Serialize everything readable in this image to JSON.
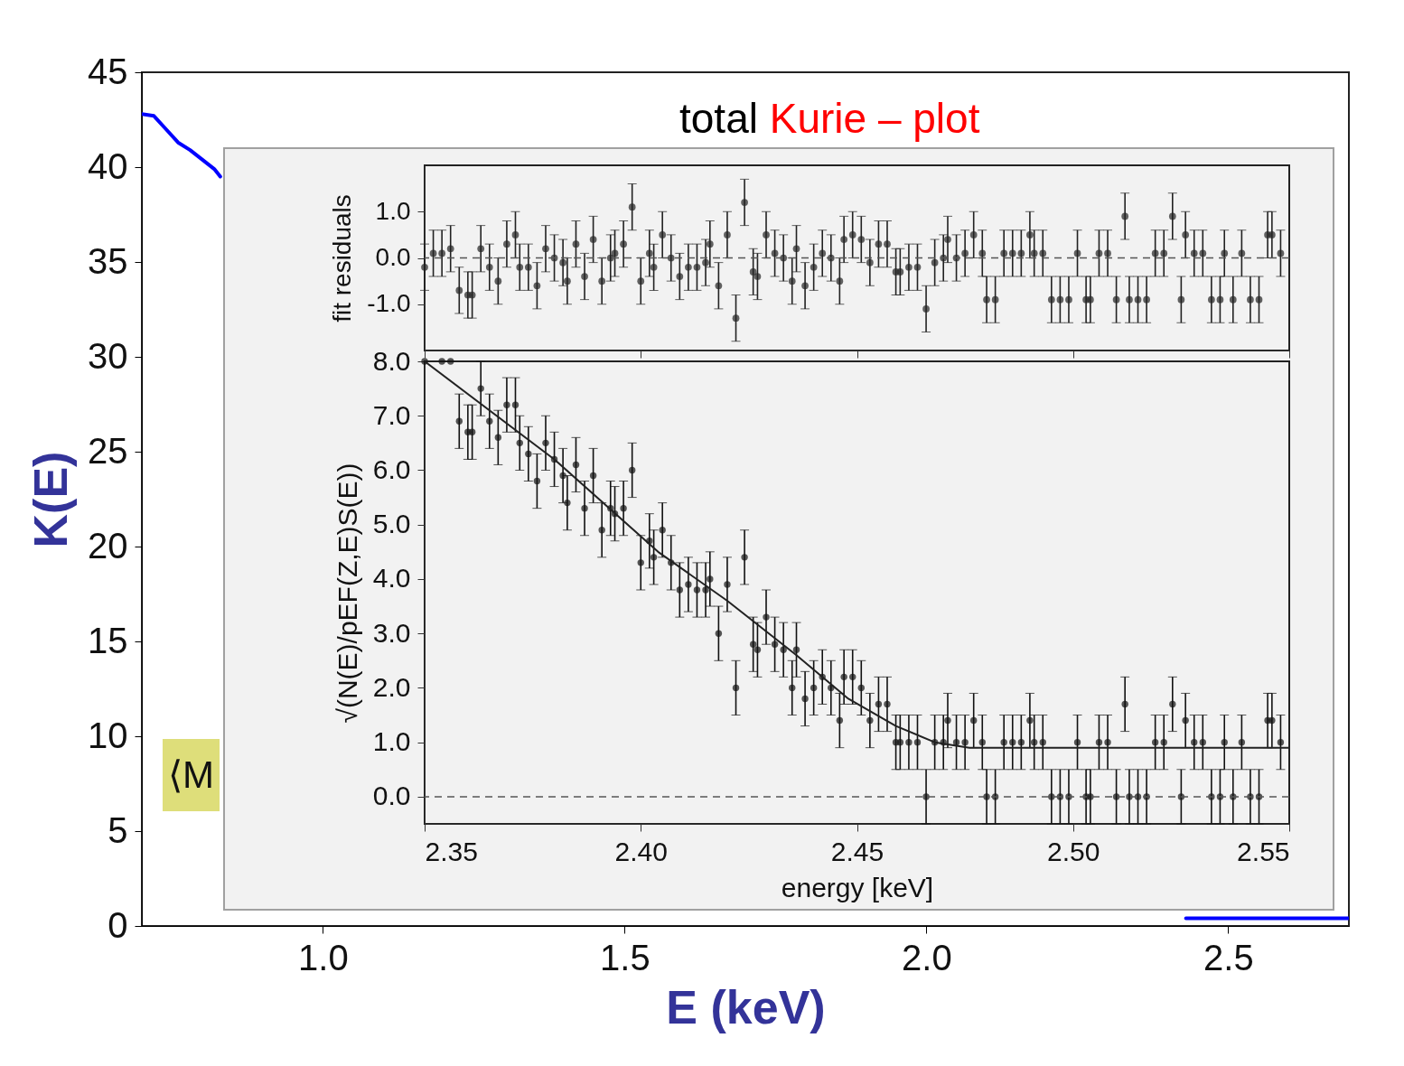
{
  "chart_data": [
    {
      "type": "line",
      "title": "total Kurie – plot",
      "xlabel": "E (keV)",
      "ylabel": "K(E)",
      "annotations": [
        "⟨M"
      ],
      "x": [
        0.7,
        0.72,
        0.74,
        0.76,
        0.78,
        0.8,
        0.82,
        0.83,
        1.5,
        2.43,
        2.5,
        2.6,
        2.7
      ],
      "series": [
        {
          "color": "#0000ff",
          "values": [
            42.8,
            42.7,
            42.0,
            41.3,
            40.9,
            40.4,
            39.9,
            39.5,
            null,
            0.4,
            0.4,
            0.4,
            0.4
          ]
        }
      ],
      "xlim": [
        0.7,
        2.7
      ],
      "ylim": [
        0,
        45
      ],
      "xticks": [
        {
          "value": 1,
          "label": "1.0"
        },
        1.5,
        {
          "value": 2,
          "label": "2.0"
        },
        2.5
      ],
      "yticks": [
        0,
        5,
        10,
        15,
        20,
        25,
        30,
        35,
        40,
        45
      ],
      "grid": false
    },
    {
      "type": "scatter",
      "ylabel": "fit residuals",
      "marker": "circle",
      "grid": false,
      "tick_labels": "y",
      "series": [
        {
          "color": "#222222",
          "x": [
            2.35,
            2.352,
            2.354,
            2.356,
            2.358,
            2.36,
            2.361,
            2.363,
            2.365,
            2.367,
            2.369,
            2.371,
            2.372,
            2.374,
            2.376,
            2.378,
            2.38,
            2.382,
            2.383,
            2.385,
            2.387,
            2.389,
            2.391,
            2.393,
            2.394,
            2.396,
            2.398,
            2.4,
            2.402,
            2.403,
            2.405,
            2.407,
            2.409,
            2.411,
            2.413,
            2.415,
            2.416,
            2.418,
            2.42,
            2.422,
            2.424,
            2.426,
            2.427,
            2.429,
            2.431,
            2.433,
            2.435,
            2.436,
            2.438,
            2.44,
            2.442,
            2.444,
            2.446,
            2.447,
            2.449,
            2.451,
            2.453,
            2.455,
            2.457,
            2.459,
            2.46,
            2.462,
            2.464,
            2.466,
            2.468,
            2.47,
            2.471,
            2.473,
            2.475,
            2.477,
            2.479,
            2.48,
            2.482,
            2.484,
            2.486,
            2.488,
            2.49,
            2.491,
            2.493,
            2.495,
            2.497,
            2.499,
            2.501,
            2.503,
            2.504,
            2.506,
            2.508,
            2.51,
            2.512,
            2.513,
            2.515,
            2.517,
            2.519,
            2.521,
            2.523,
            2.525,
            2.526,
            2.528,
            2.53,
            2.532,
            2.534,
            2.535,
            2.537,
            2.539,
            2.541,
            2.543,
            2.545,
            2.546,
            2.548
          ],
          "values": [
            -0.2,
            0.1,
            0.1,
            0.2,
            -0.7,
            -0.8,
            -0.8,
            0.2,
            -0.2,
            -0.5,
            0.3,
            0.5,
            -0.2,
            -0.2,
            -0.6,
            0.2,
            0.0,
            -0.1,
            -0.5,
            0.3,
            -0.4,
            0.4,
            -0.5,
            0.0,
            0.1,
            0.3,
            1.1,
            -0.5,
            0.1,
            -0.2,
            0.5,
            0.0,
            -0.4,
            -0.2,
            -0.2,
            -0.1,
            0.3,
            -0.6,
            0.5,
            -1.3,
            1.2,
            -0.3,
            -0.4,
            0.5,
            0.1,
            0.0,
            -0.5,
            0.2,
            -0.6,
            -0.2,
            0.1,
            0.0,
            -0.5,
            0.4,
            0.5,
            0.4,
            -0.1,
            0.3,
            0.3,
            -0.3,
            -0.3,
            -0.2,
            -0.2,
            -1.1,
            -0.1,
            0.0,
            0.4,
            0.0,
            0.1,
            0.5,
            0.1,
            -0.9,
            -0.9,
            0.1,
            0.1,
            0.1,
            0.5,
            0.1,
            0.1,
            -0.9,
            -0.9,
            -0.9,
            0.1,
            -0.9,
            -0.9,
            0.1,
            0.1,
            -0.9,
            0.9,
            -0.9,
            -0.9,
            -0.9,
            0.1,
            0.1,
            0.9,
            -0.9,
            0.5,
            0.1,
            0.1,
            -0.9,
            -0.9,
            0.1,
            -0.9,
            0.1,
            -0.9,
            -0.9,
            0.5,
            0.5,
            0.1
          ],
          "errors": [
            0.5,
            0.5,
            0.5,
            0.5,
            0.5,
            0.5,
            0.5,
            0.5,
            0.5,
            0.5,
            0.5,
            0.5,
            0.5,
            0.5,
            0.5,
            0.5,
            0.5,
            0.5,
            0.5,
            0.5,
            0.5,
            0.5,
            0.5,
            0.5,
            0.5,
            0.5,
            0.5,
            0.5,
            0.5,
            0.5,
            0.5,
            0.5,
            0.5,
            0.5,
            0.5,
            0.5,
            0.5,
            0.5,
            0.5,
            0.5,
            0.5,
            0.5,
            0.5,
            0.5,
            0.5,
            0.5,
            0.5,
            0.5,
            0.5,
            0.5,
            0.5,
            0.5,
            0.5,
            0.5,
            0.5,
            0.5,
            0.5,
            0.5,
            0.5,
            0.5,
            0.5,
            0.5,
            0.5,
            0.5,
            0.5,
            0.5,
            0.5,
            0.5,
            0.5,
            0.5,
            0.5,
            0.5,
            0.5,
            0.5,
            0.5,
            0.5,
            0.5,
            0.5,
            0.5,
            0.5,
            0.5,
            0.5,
            0.5,
            0.5,
            0.5,
            0.5,
            0.5,
            0.5,
            0.5,
            0.5,
            0.5,
            0.5,
            0.5,
            0.5,
            0.5,
            0.5,
            0.5,
            0.5,
            0.5,
            0.5,
            0.5,
            0.5,
            0.5,
            0.5,
            0.5,
            0.5,
            0.5,
            0.5,
            0.5
          ]
        }
      ],
      "xlim": [
        2.35,
        2.55
      ],
      "ylim": [
        -2,
        2
      ],
      "xticks": [
        2.35,
        2.4,
        2.45,
        2.5,
        2.55
      ],
      "yticks": [
        {
          "value": -1,
          "label": "-1.0"
        },
        {
          "value": 0,
          "label": "0.0"
        },
        {
          "value": 1,
          "label": "1.0"
        }
      ],
      "ref_lines": [
        {
          "axis": "y",
          "value": 0,
          "color": "#555555",
          "line_style": "dashed"
        }
      ]
    },
    {
      "type": "scatter",
      "xlabel": "energy [keV]",
      "ylabel": "√(N(E)/pEF(Z,E)S(E))",
      "marker": "circle",
      "grid": false,
      "series": [
        {
          "color": "#111111",
          "x": [
            2.35,
            2.354,
            2.356,
            2.358,
            2.36,
            2.361,
            2.363,
            2.365,
            2.367,
            2.369,
            2.371,
            2.372,
            2.374,
            2.376,
            2.378,
            2.38,
            2.382,
            2.383,
            2.385,
            2.387,
            2.389,
            2.391,
            2.393,
            2.394,
            2.396,
            2.398,
            2.4,
            2.402,
            2.403,
            2.405,
            2.407,
            2.409,
            2.411,
            2.413,
            2.415,
            2.416,
            2.418,
            2.42,
            2.422,
            2.424,
            2.426,
            2.427,
            2.429,
            2.431,
            2.433,
            2.435,
            2.436,
            2.438,
            2.44,
            2.442,
            2.444,
            2.446,
            2.447,
            2.449,
            2.451,
            2.453,
            2.455,
            2.457,
            2.459,
            2.46,
            2.462,
            2.464,
            2.466,
            2.468,
            2.47,
            2.471,
            2.473,
            2.475,
            2.477,
            2.479,
            2.48,
            2.482,
            2.484,
            2.486,
            2.488,
            2.49,
            2.491,
            2.493,
            2.495,
            2.497,
            2.499,
            2.501,
            2.503,
            2.504,
            2.506,
            2.508,
            2.51,
            2.512,
            2.513,
            2.515,
            2.517,
            2.519,
            2.521,
            2.523,
            2.525,
            2.526,
            2.528,
            2.53,
            2.532,
            2.534,
            2.535,
            2.537,
            2.539,
            2.541,
            2.543,
            2.545,
            2.546,
            2.548
          ],
          "values": [
            8.0,
            8.0,
            8.0,
            6.9,
            6.7,
            6.7,
            7.5,
            6.9,
            6.6,
            7.2,
            7.2,
            6.5,
            6.3,
            5.8,
            6.5,
            6.2,
            5.9,
            5.4,
            6.1,
            5.3,
            5.9,
            4.9,
            5.3,
            5.2,
            5.3,
            6.0,
            4.3,
            4.7,
            4.4,
            4.9,
            4.3,
            3.8,
            3.9,
            3.8,
            3.8,
            4.0,
            3.0,
            3.9,
            2.0,
            4.4,
            2.8,
            2.7,
            3.3,
            2.8,
            2.7,
            2.0,
            2.7,
            1.8,
            2.0,
            2.2,
            2.0,
            1.4,
            2.2,
            2.2,
            2.0,
            1.4,
            1.7,
            1.7,
            1.0,
            1.0,
            1.0,
            1.0,
            0.0,
            1.0,
            1.0,
            1.4,
            1.0,
            1.0,
            1.4,
            1.0,
            0.0,
            0.0,
            1.0,
            1.0,
            1.0,
            1.4,
            1.0,
            1.0,
            0.0,
            0.0,
            0.0,
            1.0,
            0.0,
            0.0,
            1.0,
            1.0,
            0.0,
            1.7,
            0.0,
            0.0,
            0.0,
            1.0,
            1.0,
            1.7,
            0.0,
            1.4,
            1.0,
            1.0,
            0.0,
            0.0,
            1.0,
            0.0,
            1.0,
            0.0,
            0.0,
            1.4,
            1.4,
            1.0
          ],
          "errors": [
            null,
            null,
            null,
            0.5,
            0.5,
            0.5,
            0.5,
            0.5,
            0.5,
            0.5,
            0.5,
            0.5,
            0.5,
            0.5,
            0.5,
            0.5,
            0.5,
            0.5,
            0.5,
            0.5,
            0.5,
            0.5,
            0.5,
            0.5,
            0.5,
            0.5,
            0.5,
            0.5,
            0.5,
            0.5,
            0.5,
            0.5,
            0.5,
            0.5,
            0.5,
            0.5,
            0.5,
            0.5,
            0.5,
            0.5,
            0.5,
            0.5,
            0.5,
            0.5,
            0.5,
            0.5,
            0.5,
            0.5,
            0.5,
            0.5,
            0.5,
            0.5,
            0.5,
            0.5,
            0.5,
            0.5,
            0.5,
            0.5,
            0.5,
            0.5,
            0.5,
            0.5,
            0.5,
            0.5,
            0.5,
            0.5,
            0.5,
            0.5,
            0.5,
            0.5,
            0.5,
            0.5,
            0.5,
            0.5,
            0.5,
            0.5,
            0.5,
            0.5,
            0.5,
            0.5,
            0.5,
            0.5,
            0.5,
            0.5,
            0.5,
            0.5,
            0.5,
            0.5,
            0.5,
            0.5,
            0.5,
            0.5,
            0.5,
            0.5,
            0.5,
            0.5,
            0.5,
            0.5,
            0.5,
            0.5,
            0.5,
            0.5,
            0.5,
            0.5,
            0.5,
            0.5,
            0.5,
            0.5
          ]
        },
        {
          "type": "line",
          "color": "#222222",
          "marker": "none",
          "x": [
            2.35,
            2.38,
            2.404,
            2.42,
            2.436,
            2.448,
            2.459,
            2.468,
            2.476,
            2.55
          ],
          "values": [
            8.0,
            6.2,
            4.5,
            3.6,
            2.6,
            1.8,
            1.3,
            1.0,
            0.9,
            0.9
          ]
        }
      ],
      "xlim": [
        2.35,
        2.55
      ],
      "ylim": [
        -0.5,
        8
      ],
      "xticks": [
        2.35,
        {
          "value": 2.4,
          "label": "2.40"
        },
        2.45,
        {
          "value": 2.5,
          "label": "2.50"
        },
        2.55
      ],
      "yticks": [
        {
          "value": 0,
          "label": "0.0"
        },
        {
          "value": 1,
          "label": "1.0"
        },
        {
          "value": 2,
          "label": "2.0"
        },
        {
          "value": 3,
          "label": "3.0"
        },
        {
          "value": 4,
          "label": "4.0"
        },
        {
          "value": 5,
          "label": "5.0"
        },
        {
          "value": 6,
          "label": "6.0"
        },
        {
          "value": 7,
          "label": "7.0"
        },
        {
          "value": 8,
          "label": "8.0"
        }
      ],
      "ref_lines": [
        {
          "axis": "y",
          "value": 0,
          "color": "#555555",
          "line_style": "dashed"
        }
      ]
    }
  ]
}
